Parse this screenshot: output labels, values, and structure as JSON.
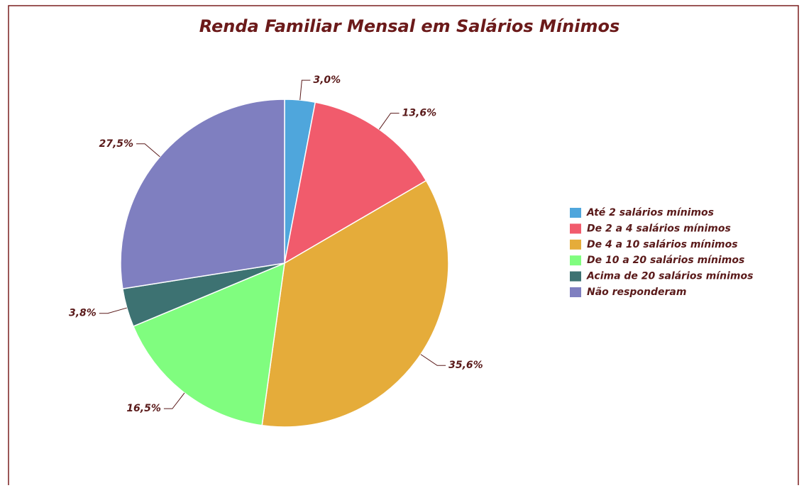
{
  "chart_data": {
    "type": "pie",
    "title": "Renda Familiar Mensal em Salários Mínimos",
    "categories": [
      "Até 2 salários mínimos",
      "De 2 a 4 salários mínimos",
      "De 4 a 10 salários mínimos",
      "De 10 a 20 salários mínimos",
      "Acima de 20 salários mínimos",
      "Não responderam"
    ],
    "values": [
      3.0,
      13.6,
      35.6,
      16.5,
      3.8,
      27.5
    ],
    "value_labels": [
      "3,0%",
      "13,6%",
      "35,6%",
      "16,5%",
      "3,8%",
      "27,5%"
    ],
    "colors": [
      "#4fa6dc",
      "#f15b6c",
      "#e5ac3a",
      "#80fd7f",
      "#3d7272",
      "#7f7fc0"
    ],
    "legend": "right"
  }
}
